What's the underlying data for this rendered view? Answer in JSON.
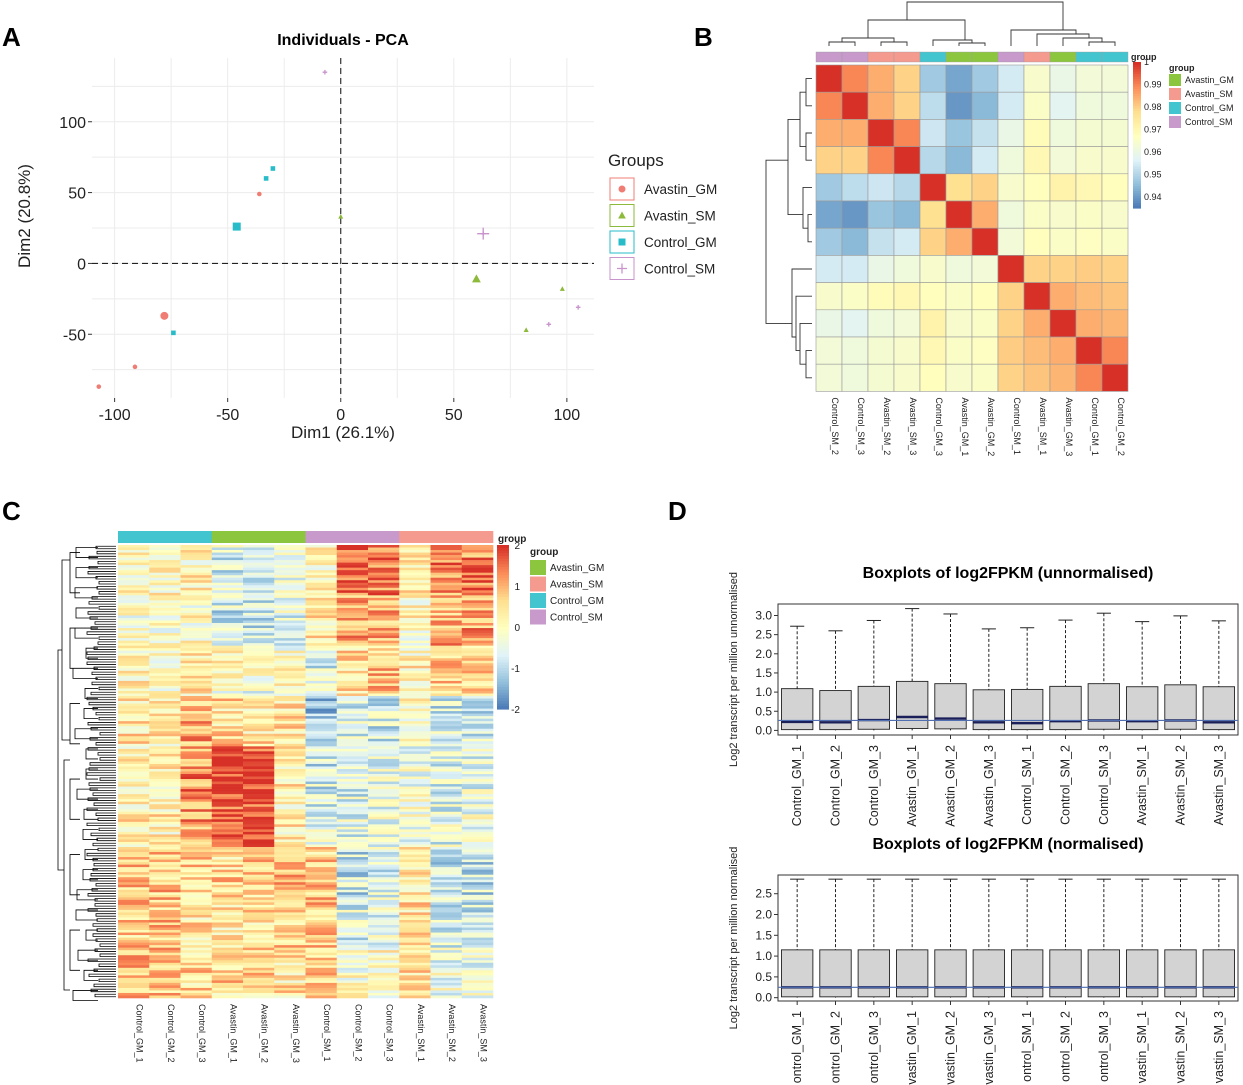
{
  "colors": {
    "Avastin_GM": "#f07d74",
    "Avastin_SM": "#8dba3a",
    "Control_GM": "#27bcc8",
    "Control_SM": "#c993cc",
    "annot_Avastin_GM": "#8cc63f",
    "annot_Avastin_SM": "#f59a8e",
    "annot_Control_GM": "#43c5cf",
    "annot_Control_SM": "#c79acb",
    "box_fill": "#d3d3d3",
    "median_line": "#1a1f5a",
    "ref_line": "#4f6fb0"
  },
  "panels": {
    "A": {
      "label": "A"
    },
    "B": {
      "label": "B"
    },
    "C": {
      "label": "C"
    },
    "D": {
      "label": "D"
    }
  },
  "chart_data": [
    {
      "id": "A",
      "type": "scatter",
      "title": "Individuals - PCA",
      "xlabel": "Dim1 (26.1%)",
      "ylabel": "Dim2 (20.8%)",
      "xlim": [
        -110,
        112
      ],
      "ylim": [
        -95,
        145
      ],
      "xticks": [
        -100,
        -50,
        0,
        50,
        100
      ],
      "yticks": [
        -50,
        0,
        50,
        100
      ],
      "xtick_labels": [
        "-100",
        "-50",
        "0",
        "50",
        "100"
      ],
      "ytick_labels": [
        "-50",
        "0",
        "50",
        "100"
      ],
      "grid": true,
      "legend_title": "Groups",
      "legend": [
        "Avastin_GM",
        "Avastin_SM",
        "Control_GM",
        "Control_SM"
      ],
      "legend_position": "right",
      "series": [
        {
          "name": "Avastin_GM",
          "shape": "circle",
          "points": [
            [
              -78,
              -37
            ],
            [
              -91,
              -73
            ],
            [
              -107,
              -87
            ],
            [
              -36,
              49
            ]
          ],
          "centroid": [
            -78,
            -37
          ]
        },
        {
          "name": "Avastin_SM",
          "shape": "triangle",
          "points": [
            [
              60,
              -11
            ],
            [
              82,
              -47
            ],
            [
              98,
              -18
            ],
            [
              0,
              33
            ]
          ],
          "centroid": [
            60,
            -11
          ]
        },
        {
          "name": "Control_GM",
          "shape": "square",
          "points": [
            [
              -46,
              26
            ],
            [
              -74,
              -49
            ],
            [
              -33,
              60
            ],
            [
              -30,
              67
            ]
          ],
          "centroid": [
            -46,
            26
          ]
        },
        {
          "name": "Control_SM",
          "shape": "plus",
          "points": [
            [
              63,
              21
            ],
            [
              92,
              -43
            ],
            [
              105,
              -31
            ],
            [
              -7,
              135
            ]
          ],
          "centroid": [
            63,
            21
          ]
        }
      ]
    },
    {
      "id": "B",
      "type": "heatmap",
      "samples": [
        "Control_SM_2",
        "Control_SM_3",
        "Avastin_SM_2",
        "Avastin_SM_3",
        "Control_GM_3",
        "Avastin_GM_1",
        "Avastin_GM_2",
        "Control_SM_1",
        "Avastin_SM_1",
        "Avastin_GM_3",
        "Control_GM_1",
        "Control_GM_2"
      ],
      "groups": [
        "Control_SM",
        "Control_SM",
        "Avastin_SM",
        "Avastin_SM",
        "Control_GM",
        "Avastin_GM",
        "Avastin_GM",
        "Control_SM",
        "Avastin_SM",
        "Avastin_GM",
        "Control_GM",
        "Control_GM"
      ],
      "values": [
        [
          1.0,
          0.99,
          0.985,
          0.98,
          0.948,
          0.942,
          0.948,
          0.955,
          0.965,
          0.96,
          0.963,
          0.963
        ],
        [
          0.99,
          1.0,
          0.985,
          0.98,
          0.952,
          0.94,
          0.945,
          0.955,
          0.966,
          0.958,
          0.962,
          0.962
        ],
        [
          0.985,
          0.985,
          1.0,
          0.99,
          0.954,
          0.947,
          0.953,
          0.96,
          0.969,
          0.962,
          0.964,
          0.964
        ],
        [
          0.98,
          0.98,
          0.99,
          1.0,
          0.951,
          0.945,
          0.955,
          0.962,
          0.97,
          0.963,
          0.965,
          0.965
        ],
        [
          0.948,
          0.952,
          0.954,
          0.951,
          1.0,
          0.978,
          0.98,
          0.965,
          0.968,
          0.972,
          0.97,
          0.968
        ],
        [
          0.942,
          0.94,
          0.947,
          0.945,
          0.978,
          1.0,
          0.985,
          0.962,
          0.966,
          0.965,
          0.966,
          0.965
        ],
        [
          0.948,
          0.945,
          0.953,
          0.955,
          0.98,
          0.985,
          1.0,
          0.963,
          0.968,
          0.966,
          0.967,
          0.966
        ],
        [
          0.955,
          0.955,
          0.96,
          0.962,
          0.965,
          0.962,
          0.963,
          1.0,
          0.98,
          0.98,
          0.981,
          0.98
        ],
        [
          0.965,
          0.966,
          0.969,
          0.97,
          0.968,
          0.966,
          0.968,
          0.98,
          1.0,
          0.985,
          0.983,
          0.982
        ],
        [
          0.96,
          0.958,
          0.962,
          0.963,
          0.972,
          0.965,
          0.966,
          0.98,
          0.985,
          1.0,
          0.985,
          0.984
        ],
        [
          0.963,
          0.962,
          0.964,
          0.965,
          0.97,
          0.966,
          0.967,
          0.981,
          0.983,
          0.985,
          1.0,
          0.99
        ],
        [
          0.963,
          0.962,
          0.964,
          0.965,
          0.968,
          0.965,
          0.966,
          0.98,
          0.982,
          0.984,
          0.99,
          1.0
        ]
      ],
      "scale_min": 0.935,
      "scale_max": 1.0,
      "colorbar_ticks": [
        1,
        0.99,
        0.98,
        0.97,
        0.96,
        0.95,
        0.94
      ],
      "colorbar_labels": [
        "1",
        "0.99",
        "0.98",
        "0.97",
        "0.96",
        "0.95",
        "0.94"
      ],
      "legend_title": "group",
      "legend": [
        "Avastin_GM",
        "Avastin_SM",
        "Control_GM",
        "Control_SM"
      ],
      "legend_position": "right"
    },
    {
      "id": "C",
      "type": "heatmap",
      "samples": [
        "Control_GM_1",
        "Control_GM_2",
        "Control_GM_3",
        "Avastin_GM_1",
        "Avastin_GM_2",
        "Avastin_GM_3",
        "Control_SM_1",
        "Control_SM_2",
        "Control_SM_3",
        "Avastin_SM_1",
        "Avastin_SM_2",
        "Avastin_SM_3"
      ],
      "groups": [
        "Control_GM",
        "Control_GM",
        "Control_GM",
        "Avastin_GM",
        "Avastin_GM",
        "Avastin_GM",
        "Control_SM",
        "Control_SM",
        "Control_SM",
        "Avastin_SM",
        "Avastin_SM",
        "Avastin_SM"
      ],
      "row_blocks": [
        [
          0.0,
          0.2,
          0.2,
          -0.6,
          -0.6,
          -0.4,
          0.2,
          1.6,
          1.5,
          0.2,
          1.3,
          1.4
        ],
        [
          -0.2,
          -0.1,
          0.0,
          -0.7,
          -0.7,
          -0.5,
          0.4,
          1.0,
          0.9,
          0.1,
          1.0,
          1.1
        ],
        [
          0.2,
          0.1,
          0.3,
          0.0,
          -0.2,
          0.0,
          -0.6,
          0.6,
          0.8,
          0.2,
          0.7,
          0.6
        ],
        [
          0.4,
          0.3,
          1.0,
          0.6,
          0.5,
          0.5,
          -1.2,
          -0.6,
          -0.7,
          0.1,
          -0.7,
          -0.7
        ],
        [
          0.2,
          0.2,
          1.3,
          2.0,
          1.9,
          0.3,
          -0.7,
          -0.6,
          -0.5,
          -0.3,
          -0.6,
          -0.4
        ],
        [
          0.3,
          0.3,
          1.1,
          1.8,
          1.6,
          0.3,
          -0.6,
          -0.5,
          -0.4,
          -0.2,
          -0.5,
          -0.3
        ],
        [
          0.8,
          0.8,
          0.6,
          0.6,
          0.7,
          0.8,
          0.7,
          -0.8,
          -0.6,
          0.4,
          -0.9,
          -0.8
        ],
        [
          0.7,
          0.8,
          0.5,
          0.4,
          0.6,
          0.6,
          0.8,
          -0.6,
          -0.5,
          0.5,
          -0.8,
          -0.7
        ],
        [
          0.9,
          0.8,
          0.6,
          0.6,
          0.6,
          0.4,
          0.8,
          -0.1,
          0.0,
          0.6,
          -0.3,
          -0.4
        ]
      ],
      "colorbar_ticks": [
        2,
        1,
        0,
        -1,
        -2
      ],
      "colorbar_labels": [
        "2",
        "1",
        "0",
        "-1",
        "-2"
      ],
      "legend_title": "group",
      "legend": [
        "Avastin_GM",
        "Avastin_SM",
        "Control_GM",
        "Control_SM"
      ],
      "legend_position": "right"
    },
    {
      "id": "D1",
      "type": "boxplot",
      "title": "Boxplots of log2FPKM (unnormalised)",
      "ylabel": "Log2 transcript per million unnormalised",
      "categories": [
        "Control_GM_1",
        "Control_GM_2",
        "Control_GM_3",
        "Avastin_GM_1",
        "Avastin_GM_2",
        "Avastin_GM_3",
        "Control_SM_1",
        "Control_SM_2",
        "Control_SM_3",
        "Avastin_SM_1",
        "Avastin_SM_2",
        "Avastin_SM_3"
      ],
      "q1": [
        0.02,
        0.02,
        0.03,
        0.05,
        0.04,
        0.02,
        0.02,
        0.02,
        0.03,
        0.02,
        0.03,
        0.02
      ],
      "median": [
        0.22,
        0.21,
        0.27,
        0.35,
        0.31,
        0.21,
        0.19,
        0.24,
        0.26,
        0.24,
        0.26,
        0.21
      ],
      "q3": [
        1.09,
        1.04,
        1.15,
        1.28,
        1.22,
        1.06,
        1.07,
        1.15,
        1.22,
        1.14,
        1.19,
        1.14
      ],
      "whisker_high": [
        2.72,
        2.6,
        2.87,
        3.18,
        3.04,
        2.65,
        2.68,
        2.88,
        3.06,
        2.84,
        2.99,
        2.86
      ],
      "whisker_low": [
        0.0,
        0.0,
        0.0,
        0.0,
        0.0,
        0.0,
        0.0,
        0.0,
        0.0,
        0.0,
        0.0,
        0.0
      ],
      "ref_line": 0.26,
      "ylim": [
        -0.12,
        3.3
      ],
      "yticks": [
        0.0,
        0.5,
        1.0,
        1.5,
        2.0,
        2.5,
        3.0
      ],
      "ytick_labels": [
        "0.0",
        "0.5",
        "1.0",
        "1.5",
        "2.0",
        "2.5",
        "3.0"
      ]
    },
    {
      "id": "D2",
      "type": "boxplot",
      "title": "Boxplots of log2FPKM (normalised)",
      "ylabel": "Log2 transcript per million normalised",
      "categories": [
        "ontrol_GM_1",
        "ontrol_GM_2",
        "ontrol_GM_3",
        "vastin_GM_1",
        "vastin_GM_2",
        "vastin_GM_3",
        "ontrol_SM_1",
        "ontrol_SM_2",
        "ontrol_SM_3",
        "vastin_SM_1",
        "vastin_SM_2",
        "vastin_SM_3"
      ],
      "q1": [
        0.02,
        0.02,
        0.02,
        0.02,
        0.02,
        0.02,
        0.02,
        0.02,
        0.02,
        0.02,
        0.02,
        0.02
      ],
      "median": [
        0.25,
        0.25,
        0.25,
        0.25,
        0.25,
        0.25,
        0.25,
        0.25,
        0.25,
        0.25,
        0.25,
        0.25
      ],
      "q3": [
        1.15,
        1.15,
        1.15,
        1.15,
        1.15,
        1.15,
        1.15,
        1.15,
        1.15,
        1.15,
        1.15,
        1.15
      ],
      "whisker_high": [
        2.85,
        2.85,
        2.85,
        2.85,
        2.85,
        2.85,
        2.85,
        2.85,
        2.85,
        2.85,
        2.85,
        2.85
      ],
      "whisker_low": [
        0.0,
        0.0,
        0.0,
        0.0,
        0.0,
        0.0,
        0.0,
        0.0,
        0.0,
        0.0,
        0.0,
        0.0
      ],
      "ref_line": 0.25,
      "ylim": [
        -0.08,
        2.95
      ],
      "yticks": [
        0.0,
        0.5,
        1.0,
        1.5,
        2.0,
        2.5
      ],
      "ytick_labels": [
        "0.0",
        "0.5",
        "1.0",
        "1.5",
        "2.0",
        "2.5"
      ]
    }
  ]
}
